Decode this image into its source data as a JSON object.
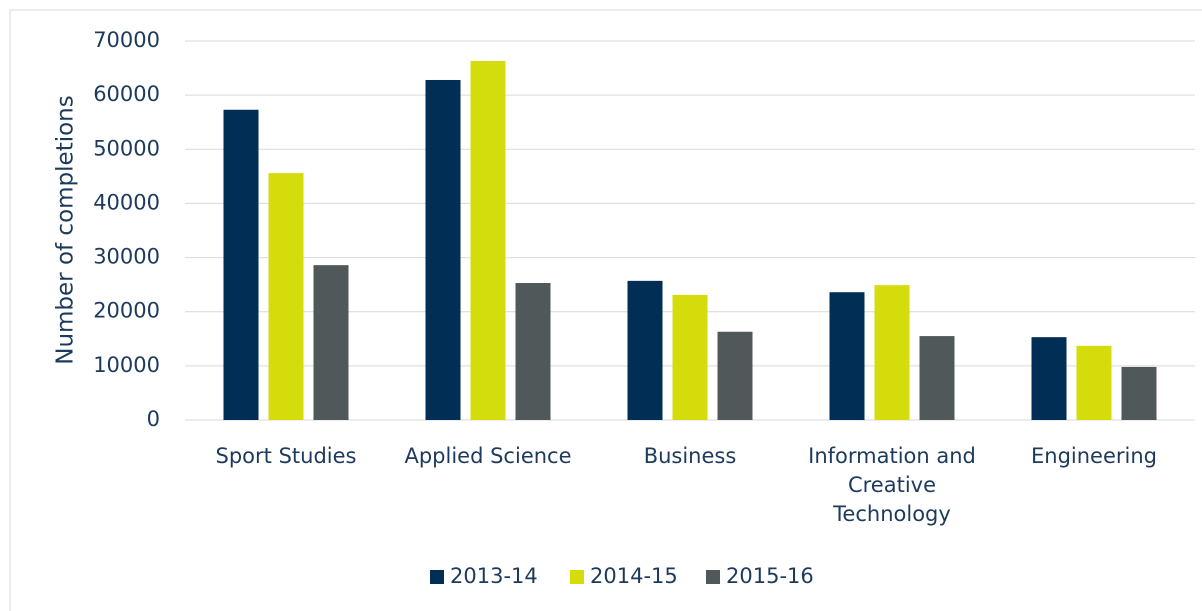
{
  "chart_data": {
    "type": "bar",
    "y_label": "Number of completions",
    "categories": [
      "Sport Studies",
      "Applied Science",
      "Business",
      "Information and Creative Technology",
      "Engineering"
    ],
    "series": [
      {
        "name": "2013-14",
        "color": "#002e55",
        "values": [
          57300,
          62800,
          25700,
          23600,
          15300
        ]
      },
      {
        "name": "2014-15",
        "color": "#d4dc0b",
        "values": [
          45600,
          66300,
          23100,
          24900,
          13700
        ]
      },
      {
        "name": "2015-16",
        "color": "#50585a",
        "values": [
          28600,
          25300,
          16300,
          15500,
          9800
        ]
      }
    ],
    "ylim": [
      0,
      70000
    ],
    "yticks": [
      0,
      10000,
      20000,
      30000,
      40000,
      50000,
      60000,
      70000
    ],
    "grid": true,
    "legend": "bottom"
  }
}
